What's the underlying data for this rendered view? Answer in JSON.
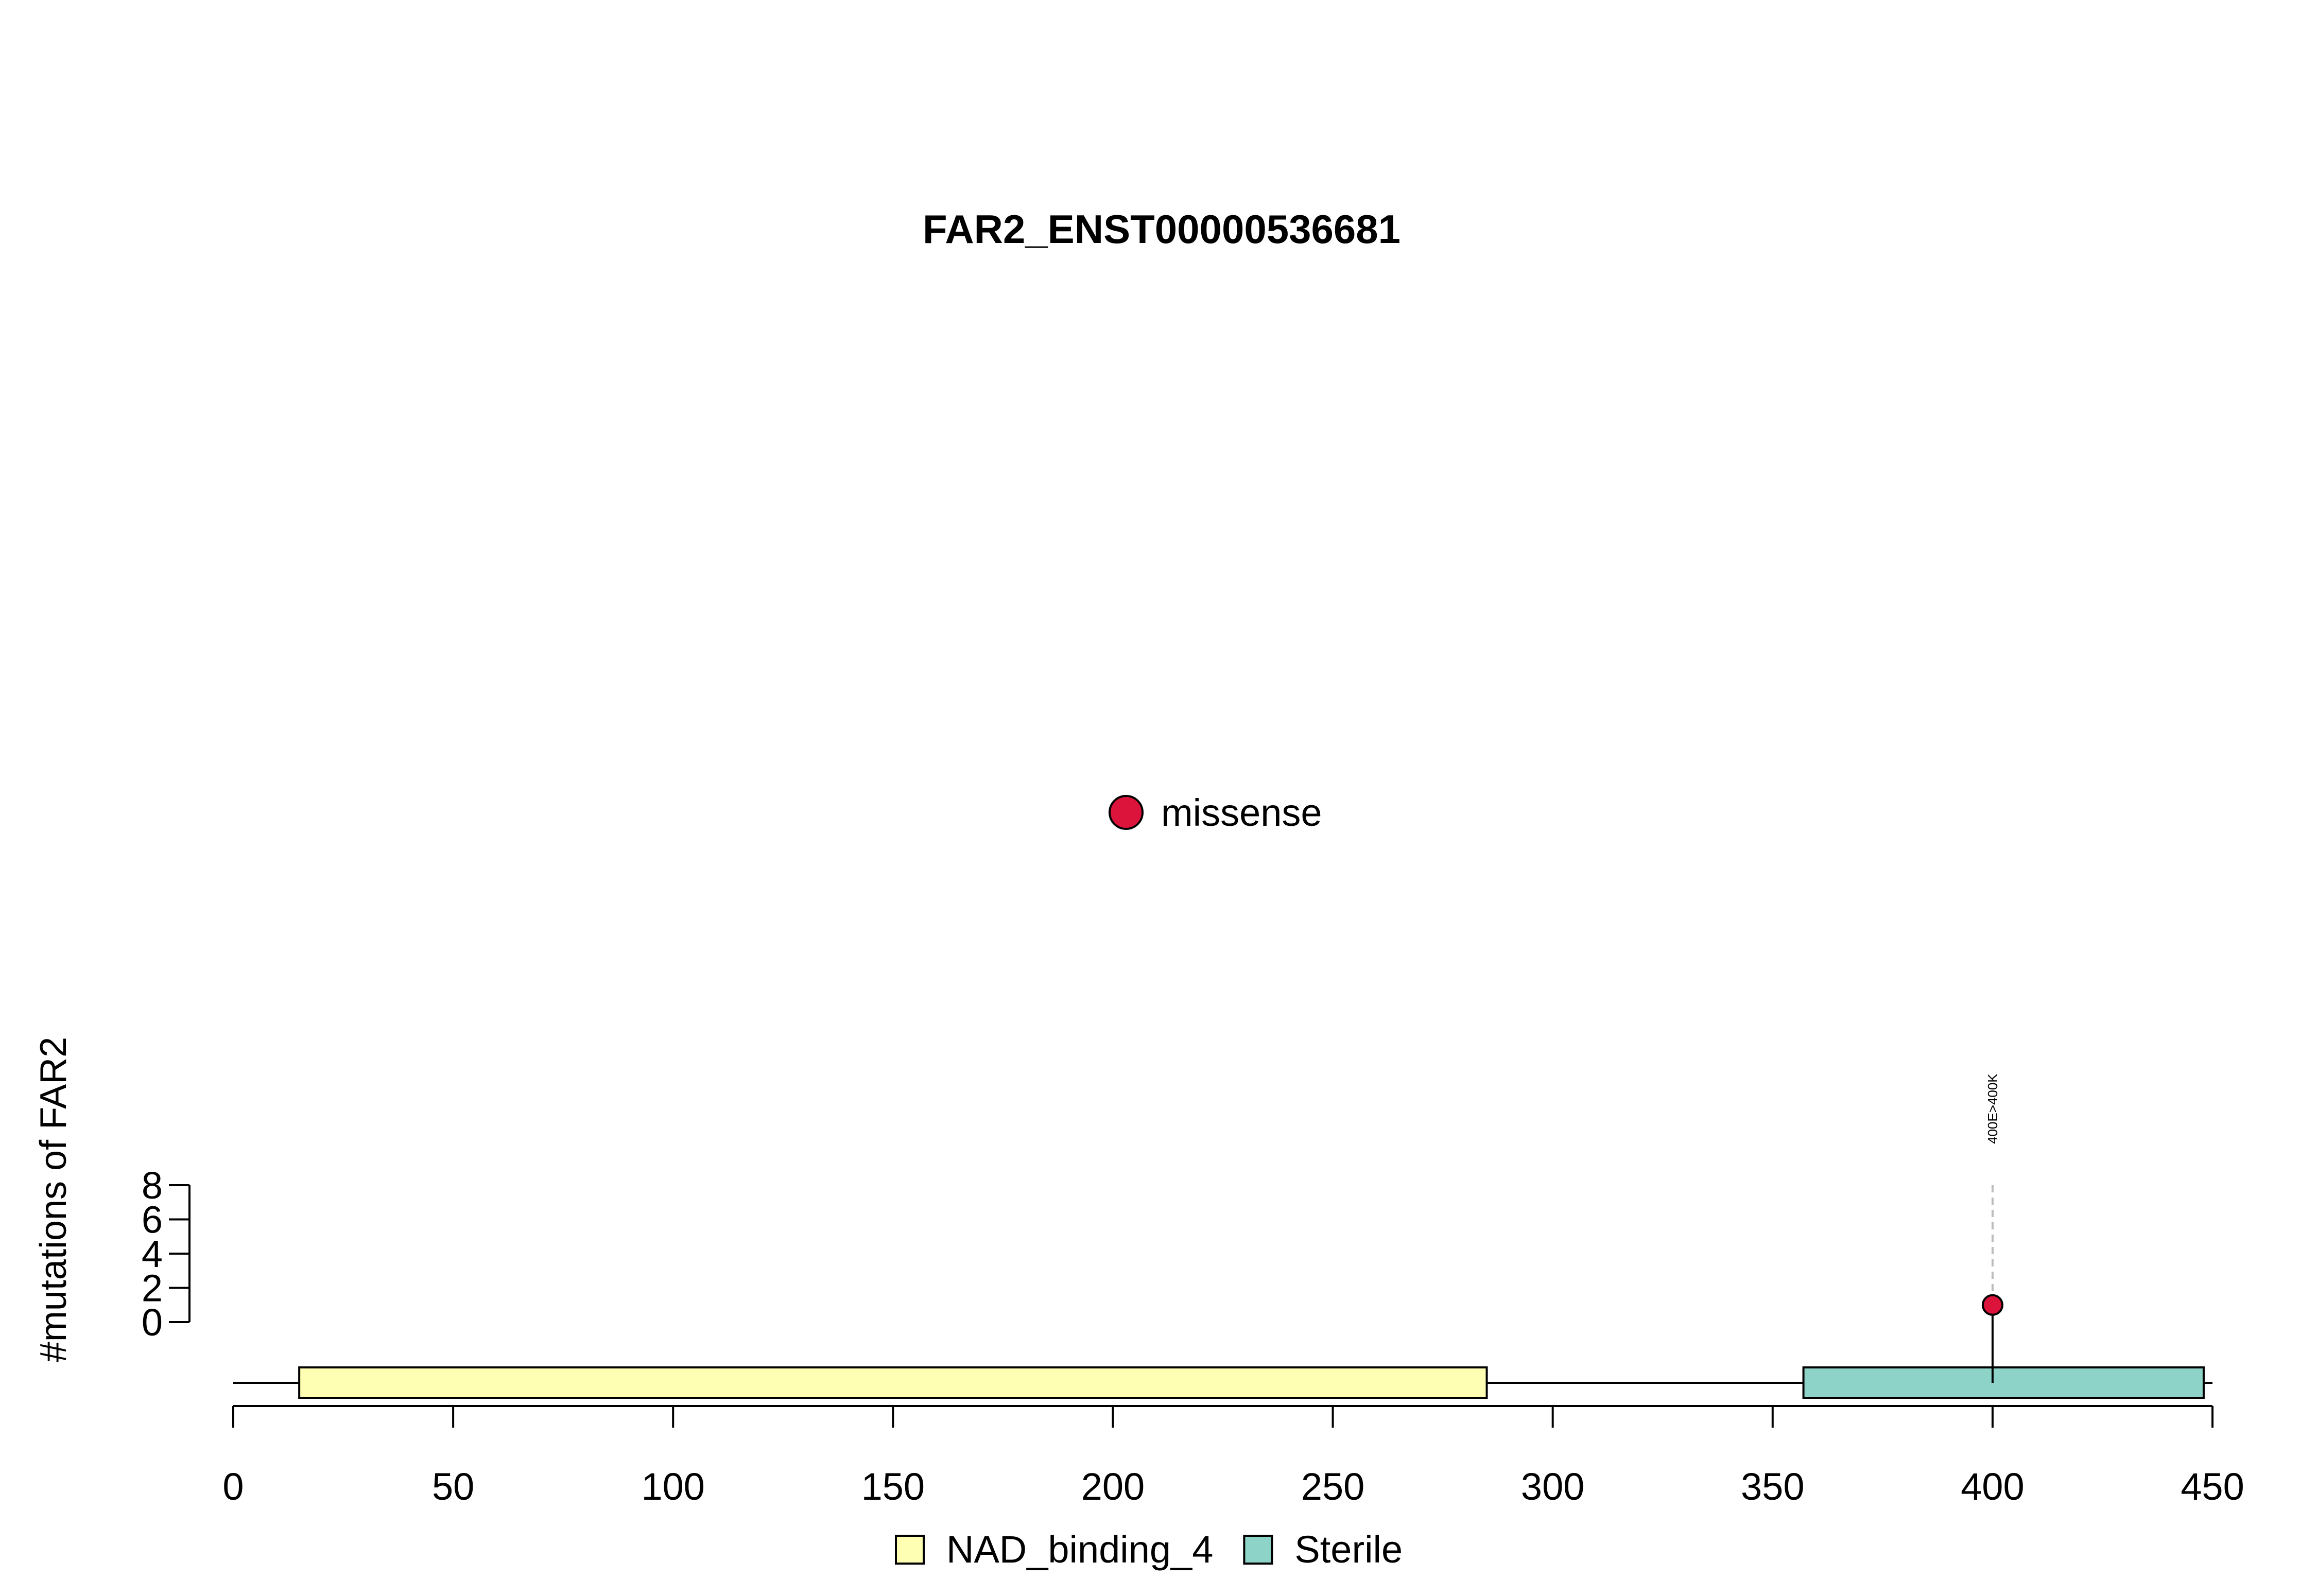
{
  "chart_data": {
    "type": "lollipop",
    "title": "FAR2_ENST00000536681",
    "ylabel": "#mutations of FAR2",
    "x_ticks": [
      0,
      50,
      100,
      150,
      200,
      250,
      300,
      350,
      400,
      450
    ],
    "xlim": [
      0,
      450
    ],
    "y_ticks": [
      0,
      2,
      4,
      6,
      8
    ],
    "ylim": [
      0,
      8
    ],
    "protein_length": 450,
    "domains": [
      {
        "name": "NAD_binding_4",
        "start": 15,
        "end": 285,
        "color": "#FFFFB3"
      },
      {
        "name": "Sterile",
        "start": 357,
        "end": 448,
        "color": "#8DD3C7"
      }
    ],
    "mutations": [
      {
        "position": 400,
        "count": 1,
        "label": "400E>400K",
        "type": "missense",
        "color": "#DC143C"
      }
    ],
    "mutation_legend": [
      {
        "label": "missense",
        "color": "#DC143C"
      }
    ],
    "domain_legend": [
      {
        "label": "NAD_binding_4",
        "color": "#FFFFB3"
      },
      {
        "label": "Sterile",
        "color": "#8DD3C7"
      }
    ]
  }
}
